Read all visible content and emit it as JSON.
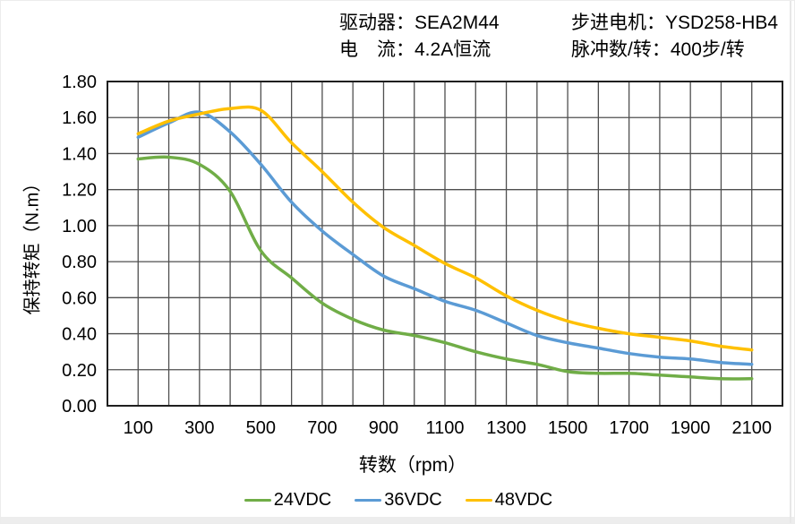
{
  "header": {
    "driver_label": "驱动器：SEA2M44",
    "current_label": "电　流：4.2A恒流",
    "motor_label": "步进电机：YSD258-HB4",
    "pulses_label": "脉冲数/转：400步/转"
  },
  "chart_data": {
    "type": "line",
    "title": "",
    "xlabel": "转数（rpm）",
    "ylabel": "保持转矩（N.m）",
    "xlim": [
      0,
      2200
    ],
    "ylim": [
      0,
      1.8
    ],
    "grid": true,
    "grid_step_x_rpm": 100,
    "grid_step_y_nm": 0.2,
    "legend_position": "bottom-center",
    "xtick_labels": [
      "100",
      "300",
      "500",
      "700",
      "900",
      "1100",
      "1300",
      "1500",
      "1700",
      "1900",
      "2100"
    ],
    "xtick_values": [
      100,
      300,
      500,
      700,
      900,
      1100,
      1300,
      1500,
      1700,
      1900,
      2100
    ],
    "ytick_labels": [
      "0.00",
      "0.20",
      "0.40",
      "0.60",
      "0.80",
      "1.00",
      "1.20",
      "1.40",
      "1.60",
      "1.80"
    ],
    "ytick_values": [
      0,
      0.2,
      0.4,
      0.6,
      0.8,
      1.0,
      1.2,
      1.4,
      1.6,
      1.8
    ],
    "x": [
      100,
      200,
      300,
      400,
      500,
      600,
      700,
      800,
      900,
      1000,
      1100,
      1200,
      1300,
      1400,
      1500,
      1600,
      1700,
      1800,
      1900,
      2000,
      2100
    ],
    "series": [
      {
        "name": "24VDC",
        "color": "#70AD47",
        "values": [
          1.37,
          1.38,
          1.34,
          1.19,
          0.86,
          0.71,
          0.57,
          0.48,
          0.42,
          0.39,
          0.35,
          0.3,
          0.26,
          0.23,
          0.19,
          0.18,
          0.18,
          0.17,
          0.16,
          0.15,
          0.15
        ]
      },
      {
        "name": "36VDC",
        "color": "#5B9BD5",
        "values": [
          1.49,
          1.57,
          1.63,
          1.52,
          1.34,
          1.13,
          0.97,
          0.84,
          0.72,
          0.65,
          0.58,
          0.53,
          0.46,
          0.39,
          0.35,
          0.32,
          0.29,
          0.27,
          0.26,
          0.24,
          0.23
        ]
      },
      {
        "name": "48VDC",
        "color": "#FFC000",
        "values": [
          1.51,
          1.58,
          1.62,
          1.65,
          1.64,
          1.46,
          1.3,
          1.13,
          0.99,
          0.89,
          0.79,
          0.71,
          0.61,
          0.53,
          0.47,
          0.43,
          0.4,
          0.38,
          0.36,
          0.33,
          0.31
        ]
      }
    ]
  },
  "style": {
    "gridline_color": "#4f4f4f",
    "border_color": "#1f1f1f",
    "text_color": "#000000"
  }
}
